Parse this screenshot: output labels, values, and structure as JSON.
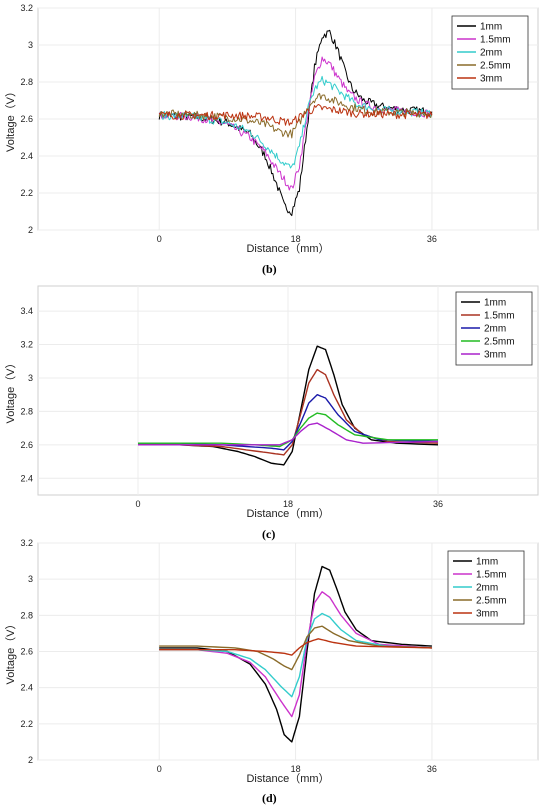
{
  "chart_data": [
    {
      "type": "line",
      "panel": "(b)",
      "xlabel": "Distance（mm）",
      "ylabel": "Voltage（V）",
      "xlim": [
        -16,
        50
      ],
      "ylim": [
        2.0,
        3.2
      ],
      "xticks": [
        0,
        18,
        36
      ],
      "yticks": [
        2,
        2.2,
        2.4,
        2.6,
        2.8,
        3,
        3.2
      ],
      "ytick_labels": [
        "2",
        "2.2",
        "2.4",
        "2.6",
        "2.8",
        "3",
        "3.2"
      ],
      "grid": true,
      "legend_position": "top-right",
      "noisy": true,
      "series": [
        {
          "name": "1mm",
          "color": "#000000",
          "points": [
            [
              0,
              2.62
            ],
            [
              5,
              2.61
            ],
            [
              9,
              2.58
            ],
            [
              12,
              2.52
            ],
            [
              14,
              2.4
            ],
            [
              15.5,
              2.25
            ],
            [
              16.5,
              2.13
            ],
            [
              17.5,
              2.1
            ],
            [
              18.5,
              2.22
            ],
            [
              19.5,
              2.55
            ],
            [
              20.5,
              2.88
            ],
            [
              21.5,
              3.05
            ],
            [
              22.5,
              3.07
            ],
            [
              23.5,
              2.98
            ],
            [
              24.5,
              2.86
            ],
            [
              25.5,
              2.76
            ],
            [
              27,
              2.7
            ],
            [
              29,
              2.67
            ],
            [
              32,
              2.65
            ],
            [
              36,
              2.64
            ]
          ]
        },
        {
          "name": "1.5mm",
          "color": "#cc33cc",
          "points": [
            [
              0,
              2.62
            ],
            [
              5,
              2.61
            ],
            [
              9,
              2.57
            ],
            [
              12,
              2.5
            ],
            [
              14,
              2.42
            ],
            [
              16,
              2.3
            ],
            [
              17.5,
              2.22
            ],
            [
              18.5,
              2.35
            ],
            [
              19.5,
              2.6
            ],
            [
              20.5,
              2.82
            ],
            [
              21.5,
              2.93
            ],
            [
              22.5,
              2.9
            ],
            [
              23.5,
              2.83
            ],
            [
              25,
              2.74
            ],
            [
              27,
              2.68
            ],
            [
              30,
              2.65
            ],
            [
              36,
              2.63
            ]
          ]
        },
        {
          "name": "2mm",
          "color": "#33cccc",
          "points": [
            [
              0,
              2.62
            ],
            [
              5,
              2.61
            ],
            [
              9,
              2.58
            ],
            [
              12,
              2.53
            ],
            [
              14,
              2.46
            ],
            [
              16,
              2.38
            ],
            [
              17.5,
              2.33
            ],
            [
              18.5,
              2.45
            ],
            [
              19.5,
              2.64
            ],
            [
              20.5,
              2.76
            ],
            [
              21.5,
              2.81
            ],
            [
              22.5,
              2.79
            ],
            [
              24,
              2.74
            ],
            [
              26,
              2.68
            ],
            [
              29,
              2.65
            ],
            [
              36,
              2.63
            ]
          ]
        },
        {
          "name": "2.5mm",
          "color": "#8a6b2a",
          "points": [
            [
              0,
              2.63
            ],
            [
              5,
              2.62
            ],
            [
              9,
              2.61
            ],
            [
              12,
              2.59
            ],
            [
              14,
              2.57
            ],
            [
              16,
              2.53
            ],
            [
              17.5,
              2.52
            ],
            [
              18.5,
              2.58
            ],
            [
              19.5,
              2.66
            ],
            [
              20.5,
              2.71
            ],
            [
              21.5,
              2.73
            ],
            [
              23,
              2.7
            ],
            [
              25,
              2.67
            ],
            [
              28,
              2.64
            ],
            [
              36,
              2.63
            ]
          ]
        },
        {
          "name": "3mm",
          "color": "#bb3311",
          "points": [
            [
              0,
              2.62
            ],
            [
              5,
              2.62
            ],
            [
              10,
              2.62
            ],
            [
              14,
              2.61
            ],
            [
              16,
              2.59
            ],
            [
              17.5,
              2.58
            ],
            [
              18.5,
              2.61
            ],
            [
              19.5,
              2.64
            ],
            [
              21,
              2.66
            ],
            [
              23,
              2.65
            ],
            [
              26,
              2.63
            ],
            [
              36,
              2.62
            ]
          ]
        }
      ]
    },
    {
      "type": "line",
      "panel": "(c)",
      "xlabel": "Distance（mm）",
      "ylabel": "Voltage（V）",
      "xlim": [
        -12,
        48
      ],
      "ylim": [
        2.3,
        3.55
      ],
      "xticks": [
        0,
        18,
        36
      ],
      "yticks": [
        2.4,
        2.6,
        2.8,
        3,
        3.2,
        3.4
      ],
      "ytick_labels": [
        "2.4",
        "2.6",
        "2.8",
        "3",
        "3.2",
        "3.4"
      ],
      "grid": true,
      "legend_position": "top-right",
      "noisy": false,
      "series": [
        {
          "name": "1mm",
          "color": "#000000",
          "points": [
            [
              0,
              2.6
            ],
            [
              5,
              2.6
            ],
            [
              9,
              2.59
            ],
            [
              12,
              2.56
            ],
            [
              14,
              2.53
            ],
            [
              16,
              2.49
            ],
            [
              17.5,
              2.48
            ],
            [
              18.5,
              2.56
            ],
            [
              19.5,
              2.8
            ],
            [
              20.5,
              3.05
            ],
            [
              21.5,
              3.19
            ],
            [
              22.5,
              3.17
            ],
            [
              23.5,
              3.02
            ],
            [
              24.5,
              2.84
            ],
            [
              26,
              2.7
            ],
            [
              28,
              2.63
            ],
            [
              31,
              2.61
            ],
            [
              36,
              2.6
            ]
          ]
        },
        {
          "name": "1.5mm",
          "color": "#aa3322",
          "points": [
            [
              0,
              2.6
            ],
            [
              5,
              2.6
            ],
            [
              10,
              2.59
            ],
            [
              13,
              2.57
            ],
            [
              16,
              2.55
            ],
            [
              17.5,
              2.54
            ],
            [
              18.5,
              2.6
            ],
            [
              19.5,
              2.78
            ],
            [
              20.5,
              2.97
            ],
            [
              21.5,
              3.05
            ],
            [
              22.5,
              3.02
            ],
            [
              23.5,
              2.9
            ],
            [
              25,
              2.75
            ],
            [
              27,
              2.66
            ],
            [
              30,
              2.62
            ],
            [
              36,
              2.61
            ]
          ]
        },
        {
          "name": "2mm",
          "color": "#1a1aaa",
          "points": [
            [
              0,
              2.61
            ],
            [
              5,
              2.61
            ],
            [
              10,
              2.6
            ],
            [
              13,
              2.59
            ],
            [
              16,
              2.58
            ],
            [
              17.5,
              2.57
            ],
            [
              18.5,
              2.62
            ],
            [
              19.5,
              2.73
            ],
            [
              20.5,
              2.85
            ],
            [
              21.5,
              2.9
            ],
            [
              22.5,
              2.88
            ],
            [
              24,
              2.78
            ],
            [
              26,
              2.68
            ],
            [
              29,
              2.63
            ],
            [
              36,
              2.62
            ]
          ]
        },
        {
          "name": "2.5mm",
          "color": "#22bb22",
          "points": [
            [
              0,
              2.61
            ],
            [
              5,
              2.61
            ],
            [
              10,
              2.61
            ],
            [
              14,
              2.6
            ],
            [
              17,
              2.59
            ],
            [
              18.5,
              2.63
            ],
            [
              19.5,
              2.7
            ],
            [
              20.5,
              2.76
            ],
            [
              21.5,
              2.79
            ],
            [
              22.5,
              2.78
            ],
            [
              24,
              2.72
            ],
            [
              26,
              2.66
            ],
            [
              30,
              2.63
            ],
            [
              36,
              2.63
            ]
          ]
        },
        {
          "name": "3mm",
          "color": "#aa22cc",
          "points": [
            [
              0,
              2.6
            ],
            [
              5,
              2.6
            ],
            [
              10,
              2.6
            ],
            [
              14,
              2.6
            ],
            [
              17,
              2.6
            ],
            [
              18.5,
              2.63
            ],
            [
              19.5,
              2.68
            ],
            [
              20.5,
              2.72
            ],
            [
              21.5,
              2.73
            ],
            [
              23,
              2.69
            ],
            [
              25,
              2.63
            ],
            [
              27,
              2.61
            ],
            [
              36,
              2.62
            ]
          ]
        }
      ]
    },
    {
      "type": "line",
      "panel": "(d)",
      "xlabel": "Distance（mm）",
      "ylabel": "Voltage（V）",
      "xlim": [
        -16,
        50
      ],
      "ylim": [
        2.0,
        3.2
      ],
      "xticks": [
        0,
        18,
        36
      ],
      "yticks": [
        2,
        2.2,
        2.4,
        2.6,
        2.8,
        3,
        3.2
      ],
      "ytick_labels": [
        "2",
        "2.2",
        "2.4",
        "2.6",
        "2.8",
        "3",
        "3.2"
      ],
      "grid": true,
      "legend_position": "top-right",
      "noisy": false,
      "series": [
        {
          "name": "1mm",
          "color": "#000000",
          "points": [
            [
              0,
              2.62
            ],
            [
              5,
              2.62
            ],
            [
              9,
              2.6
            ],
            [
              12,
              2.53
            ],
            [
              14,
              2.42
            ],
            [
              15.5,
              2.28
            ],
            [
              16.5,
              2.14
            ],
            [
              17.5,
              2.1
            ],
            [
              18.5,
              2.24
            ],
            [
              19.5,
              2.6
            ],
            [
              20.5,
              2.92
            ],
            [
              21.5,
              3.07
            ],
            [
              22.5,
              3.05
            ],
            [
              23.5,
              2.94
            ],
            [
              24.5,
              2.82
            ],
            [
              26,
              2.72
            ],
            [
              28,
              2.66
            ],
            [
              32,
              2.64
            ],
            [
              36,
              2.63
            ]
          ]
        },
        {
          "name": "1.5mm",
          "color": "#cc33cc",
          "points": [
            [
              0,
              2.61
            ],
            [
              5,
              2.61
            ],
            [
              9,
              2.59
            ],
            [
              12,
              2.54
            ],
            [
              14,
              2.46
            ],
            [
              16,
              2.33
            ],
            [
              17.5,
              2.24
            ],
            [
              18.5,
              2.36
            ],
            [
              19.5,
              2.65
            ],
            [
              20.5,
              2.87
            ],
            [
              21.5,
              2.93
            ],
            [
              22.5,
              2.9
            ],
            [
              24,
              2.8
            ],
            [
              26,
              2.7
            ],
            [
              29,
              2.64
            ],
            [
              36,
              2.62
            ]
          ]
        },
        {
          "name": "2mm",
          "color": "#33cccc",
          "points": [
            [
              0,
              2.61
            ],
            [
              5,
              2.61
            ],
            [
              9,
              2.6
            ],
            [
              12,
              2.56
            ],
            [
              14,
              2.5
            ],
            [
              16,
              2.41
            ],
            [
              17.5,
              2.35
            ],
            [
              18.5,
              2.46
            ],
            [
              19.5,
              2.67
            ],
            [
              20.5,
              2.78
            ],
            [
              21.5,
              2.81
            ],
            [
              22.5,
              2.79
            ],
            [
              24,
              2.72
            ],
            [
              26,
              2.66
            ],
            [
              30,
              2.63
            ],
            [
              36,
              2.62
            ]
          ]
        },
        {
          "name": "2.5mm",
          "color": "#8a6b2a",
          "points": [
            [
              0,
              2.63
            ],
            [
              5,
              2.63
            ],
            [
              10,
              2.62
            ],
            [
              13,
              2.6
            ],
            [
              15,
              2.56
            ],
            [
              16.5,
              2.52
            ],
            [
              17.5,
              2.5
            ],
            [
              18.5,
              2.58
            ],
            [
              19.5,
              2.68
            ],
            [
              20.5,
              2.73
            ],
            [
              21.5,
              2.74
            ],
            [
              23,
              2.7
            ],
            [
              25,
              2.66
            ],
            [
              29,
              2.63
            ],
            [
              36,
              2.62
            ]
          ]
        },
        {
          "name": "3mm",
          "color": "#bb3311",
          "points": [
            [
              0,
              2.61
            ],
            [
              5,
              2.61
            ],
            [
              10,
              2.61
            ],
            [
              14,
              2.6
            ],
            [
              16.5,
              2.59
            ],
            [
              17.5,
              2.58
            ],
            [
              18.5,
              2.62
            ],
            [
              19.5,
              2.65
            ],
            [
              21,
              2.67
            ],
            [
              23,
              2.65
            ],
            [
              26,
              2.63
            ],
            [
              36,
              2.62
            ]
          ]
        }
      ]
    }
  ]
}
